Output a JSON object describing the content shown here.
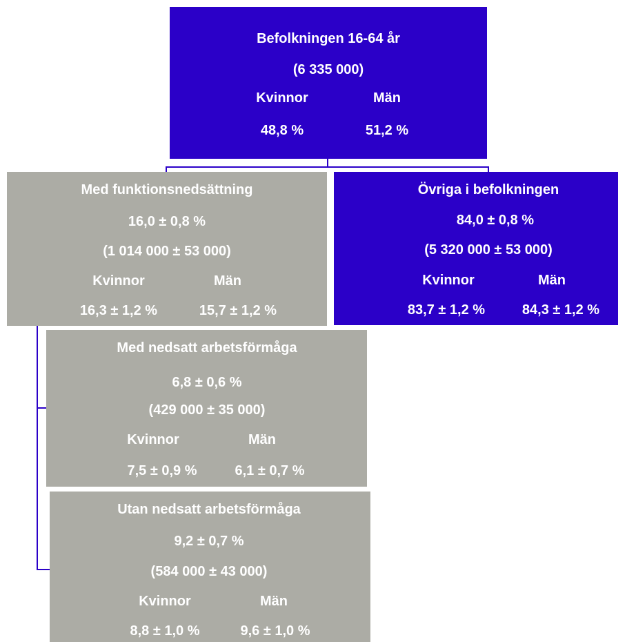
{
  "population": {
    "title": "Befolkningen 16-64 år",
    "count": "(6 335 000)",
    "women_label": "Kvinnor",
    "men_label": "Män",
    "women_value": "48,8 %",
    "men_value": "51,2 %"
  },
  "with_disability": {
    "title": "Med funktionsnedsättning",
    "share": "16,0 ± 0,8 %",
    "count": "(1 014 000 ± 53 000)",
    "women_label": "Kvinnor",
    "men_label": "Män",
    "women_value": "16,3 ± 1,2 %",
    "men_value": "15,7 ± 1,2 %"
  },
  "others": {
    "title": "Övriga i befolkningen",
    "share": "84,0 ± 0,8 %",
    "count": "(5 320 000 ± 53 000)",
    "women_label": "Kvinnor",
    "men_label": "Män",
    "women_value": "83,7 ± 1,2 %",
    "men_value": "84,3 ± 1,2 %"
  },
  "reduced_capacity": {
    "title": "Med nedsatt arbetsförmåga",
    "share": "6,8 ± 0,6 %",
    "count": "(429 000 ± 35 000)",
    "women_label": "Kvinnor",
    "men_label": "Män",
    "women_value": "7,5 ± 0,9 %",
    "men_value": "6,1 ± 0,7 %"
  },
  "no_reduced_capacity": {
    "title": "Utan nedsatt arbetsförmåga",
    "share": "9,2 ± 0,7 %",
    "count": "(584 000 ± 43 000)",
    "women_label": "Kvinnor",
    "men_label": "Män",
    "women_value": "8,8 ± 1,0 %",
    "men_value": "9,6 ± 1,0 %"
  },
  "colors": {
    "blue_box": "#2b00c8",
    "gray_box": "#acaca5",
    "connector": "#2b00c8",
    "text": "#ffffff"
  }
}
